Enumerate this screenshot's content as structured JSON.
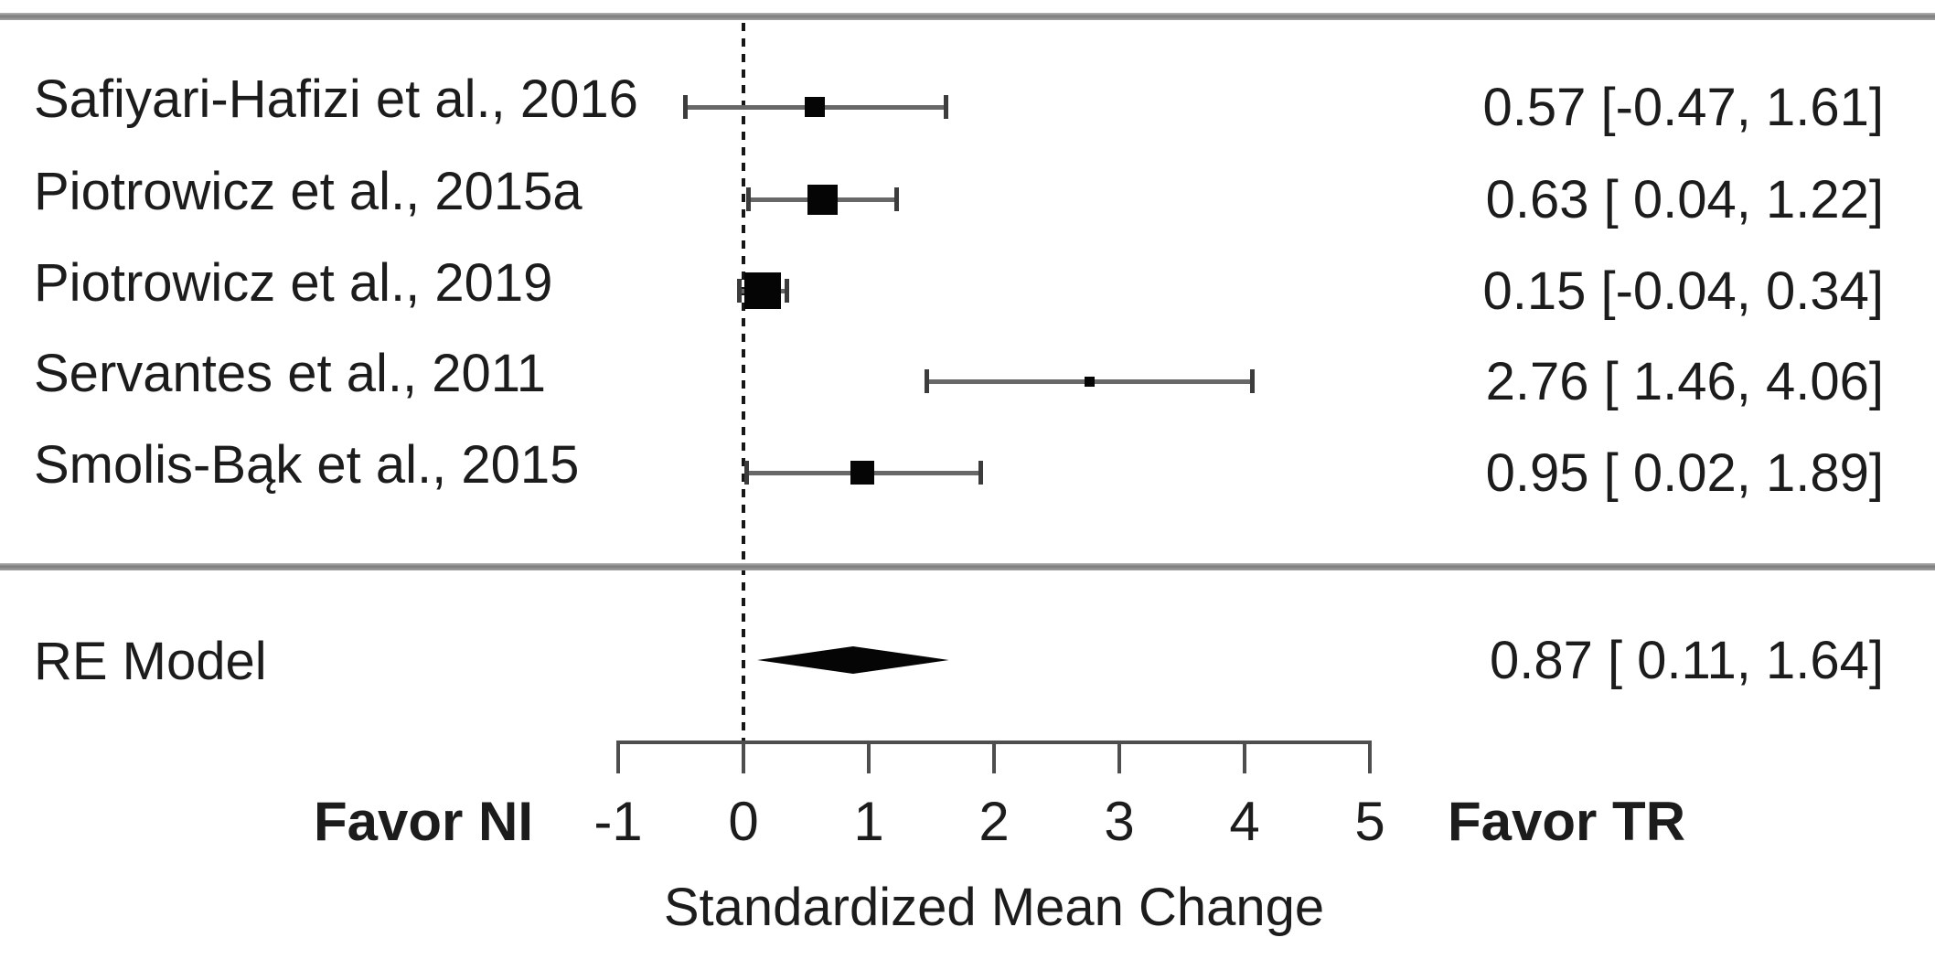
{
  "chart_data": {
    "type": "forest",
    "xlabel": "Standardized Mean Change",
    "xlim": [
      -1,
      5
    ],
    "x_ticks": [
      -1,
      0,
      1,
      2,
      3,
      4,
      5
    ],
    "x_tick_labels": [
      "-1",
      "0",
      "1",
      "2",
      "3",
      "4",
      "5"
    ],
    "zero_reference_line": 0,
    "grid": "off",
    "studies": [
      {
        "label": "Safiyari-Hafizi et al., 2016",
        "estimate": 0.57,
        "ci_low": -0.47,
        "ci_high": 1.61,
        "display": "0.57 [-0.47, 1.61]",
        "marker_size": 22
      },
      {
        "label": "Piotrowicz et al., 2015a",
        "estimate": 0.63,
        "ci_low": 0.04,
        "ci_high": 1.22,
        "display": "0.63 [ 0.04, 1.22]",
        "marker_size": 33
      },
      {
        "label": "Piotrowicz et al., 2019",
        "estimate": 0.15,
        "ci_low": -0.04,
        "ci_high": 0.34,
        "display": "0.15 [-0.04, 0.34]",
        "marker_size": 40
      },
      {
        "label": "Servantes et al., 2011",
        "estimate": 2.76,
        "ci_low": 1.46,
        "ci_high": 4.06,
        "display": "2.76 [ 1.46, 4.06]",
        "marker_size": 11
      },
      {
        "label": "Smolis-Bąk et al., 2015",
        "estimate": 0.95,
        "ci_low": 0.02,
        "ci_high": 1.89,
        "display": "0.95 [ 0.02, 1.89]",
        "marker_size": 26
      }
    ],
    "re_model": {
      "label": "RE Model",
      "estimate": 0.87,
      "ci_low": 0.11,
      "ci_high": 1.64,
      "display": "0.87 [ 0.11, 1.64]"
    },
    "annotations": {
      "left": "Favor NI",
      "right": "Favor TR"
    },
    "colors": {
      "marker": "#050505",
      "ci_line": "#686868",
      "rule": "#8a8a8a",
      "text": "#1c1c1c"
    }
  }
}
